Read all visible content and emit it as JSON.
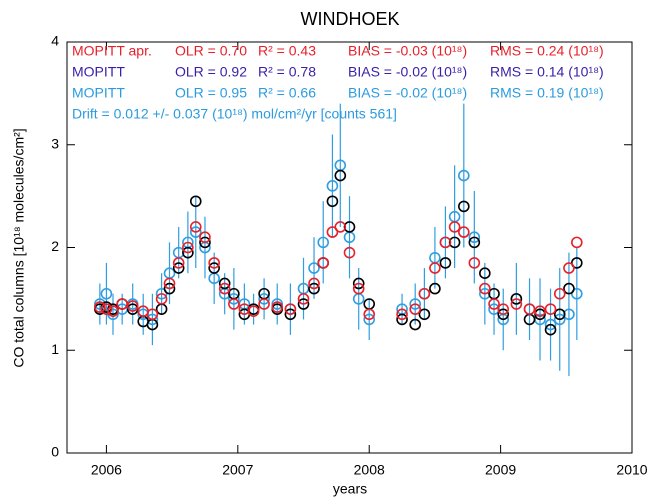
{
  "chart_data": {
    "type": "scatter",
    "title": "WINDHOEK",
    "xlabel": "years",
    "ylabel": "CO total columns [10¹⁸ molecules/cm²]",
    "xlim": [
      2005.7,
      2010
    ],
    "xticks": [
      2006,
      2007,
      2008,
      2009,
      2010
    ],
    "ylim": [
      0,
      4
    ],
    "yticks": [
      0,
      1,
      2,
      3,
      4
    ],
    "x": [
      2005.95,
      2006.0,
      2006.05,
      2006.12,
      2006.2,
      2006.28,
      2006.35,
      2006.42,
      2006.48,
      2006.55,
      2006.62,
      2006.68,
      2006.75,
      2006.82,
      2006.9,
      2006.97,
      2007.05,
      2007.12,
      2007.2,
      2007.3,
      2007.4,
      2007.5,
      2007.58,
      2007.65,
      2007.72,
      2007.78,
      2007.85,
      2007.92,
      2008.0,
      2008.25,
      2008.35,
      2008.42,
      2008.5,
      2008.58,
      2008.65,
      2008.72,
      2008.8,
      2008.88,
      2008.95,
      2009.02,
      2009.12,
      2009.22,
      2009.3,
      2009.38,
      2009.45,
      2009.52,
      2009.58
    ],
    "series": [
      {
        "name": "MOPITT",
        "color": "#2f9ee0",
        "label_color": "#2a9be0",
        "olr": "OLR = 0.95",
        "r2": "R² = 0.66",
        "bias": "BIAS = -0.02 (10¹⁸)",
        "rms": "RMS = 0.19 (10¹⁸)",
        "values": [
          1.45,
          1.55,
          1.35,
          1.4,
          1.45,
          1.35,
          1.3,
          1.55,
          1.75,
          1.95,
          2.05,
          2.15,
          2.0,
          1.7,
          1.55,
          1.5,
          1.45,
          1.4,
          1.5,
          1.45,
          1.4,
          1.6,
          1.8,
          2.05,
          2.6,
          2.8,
          2.1,
          1.5,
          1.3,
          1.4,
          1.45,
          1.55,
          1.9,
          2.05,
          2.3,
          2.7,
          2.1,
          1.55,
          1.4,
          1.3,
          1.5,
          1.4,
          1.3,
          1.25,
          1.3,
          1.35,
          1.55
        ],
        "errors": [
          0.2,
          0.3,
          0.2,
          0.15,
          0.2,
          0.2,
          0.25,
          0.2,
          0.3,
          0.25,
          0.3,
          0.35,
          0.3,
          0.25,
          0.2,
          0.3,
          0.2,
          0.15,
          0.2,
          0.2,
          0.25,
          0.3,
          0.3,
          0.4,
          0.5,
          0.6,
          0.4,
          0.3,
          0.2,
          0.15,
          0.2,
          0.25,
          0.3,
          0.35,
          0.5,
          0.7,
          0.45,
          0.3,
          0.25,
          0.3,
          0.35,
          0.3,
          0.4,
          0.35,
          0.5,
          0.6,
          0.45
        ]
      },
      {
        "name": "MOPITT",
        "color": "#000000",
        "label_color": "#3a1fa8",
        "olr": "OLR = 0.92",
        "r2": "R² = 0.78",
        "bias": "BIAS = -0.02 (10¹⁸)",
        "rms": "RMS = 0.14 (10¹⁸)",
        "values": [
          1.4,
          1.42,
          1.4,
          1.45,
          1.4,
          1.28,
          1.25,
          1.4,
          1.6,
          1.8,
          1.95,
          2.45,
          2.05,
          1.8,
          1.65,
          1.55,
          1.35,
          1.4,
          1.55,
          1.4,
          1.35,
          1.45,
          1.6,
          1.85,
          2.45,
          2.7,
          2.2,
          1.65,
          1.45,
          1.3,
          1.25,
          1.35,
          1.6,
          1.85,
          2.05,
          2.4,
          2.05,
          1.75,
          1.55,
          1.35,
          1.5,
          1.3,
          1.35,
          1.2,
          1.35,
          1.6,
          1.85
        ]
      },
      {
        "name": "MOPITT apr.",
        "color": "#e8202a",
        "label_color": "#e8202a",
        "olr": "OLR = 0.70",
        "r2": "R² = 0.43",
        "bias": "BIAS = -0.03 (10¹⁸)",
        "rms": "RMS = 0.24 (10¹⁸)",
        "values": [
          1.42,
          1.4,
          1.38,
          1.45,
          1.43,
          1.38,
          1.35,
          1.5,
          1.65,
          1.85,
          2.0,
          2.2,
          2.1,
          1.85,
          1.6,
          1.45,
          1.4,
          1.38,
          1.45,
          1.42,
          1.4,
          1.5,
          1.65,
          1.85,
          2.15,
          2.2,
          1.95,
          1.6,
          1.35,
          1.35,
          1.4,
          1.55,
          1.8,
          2.05,
          2.2,
          2.15,
          1.85,
          1.6,
          1.45,
          1.4,
          1.45,
          1.4,
          1.38,
          1.4,
          1.55,
          1.8,
          2.05
        ]
      }
    ],
    "annotation": "Drift =  0.012 +/-  0.037 (10¹⁸) mol/cm²/yr  [counts  561]",
    "annotation_color": "#2a9be0"
  }
}
